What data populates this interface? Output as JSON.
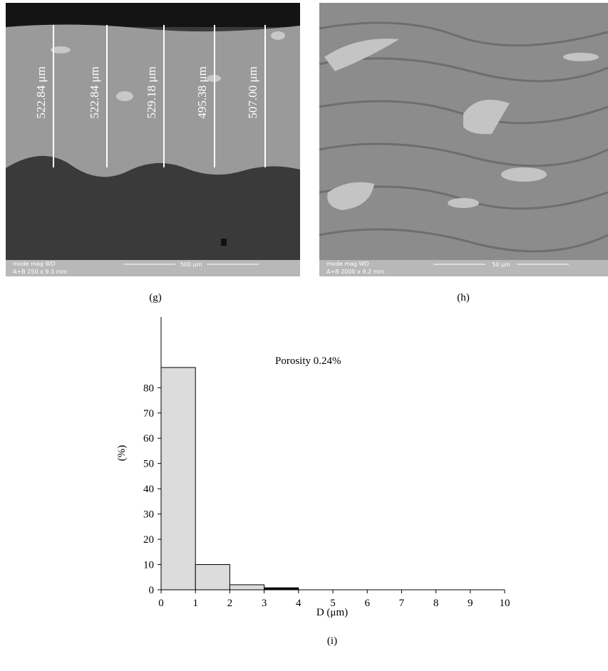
{
  "images": [
    {
      "caption": "(g)",
      "measurements": [
        "522.84 μm",
        "522.84 μm",
        "529.18 μm",
        "495.38 μm",
        "507.00 μm"
      ],
      "info_header": "mode  mag    WD",
      "info_values": "A+B  250 x 9.3 mm",
      "scale_bar": "500 μm"
    },
    {
      "caption": "(h)",
      "info_header": "mode  mag     WD",
      "info_values": "A+B  2000 x 9.2 mm",
      "scale_bar": "50 μm"
    }
  ],
  "chart_data": {
    "type": "histogram",
    "caption": "(i)",
    "annotation": "Porosity 0.24%",
    "xlabel": "D (μm)",
    "ylabel": "(%)",
    "bins": [
      0,
      1,
      2,
      3,
      4
    ],
    "values": [
      88,
      10,
      2,
      0.8
    ],
    "colors": [
      "#dcdcdc",
      "#dcdcdc",
      "#dcdcdc",
      "#000000"
    ],
    "xlim": [
      0,
      10
    ],
    "xticks": [
      0,
      1,
      2,
      3,
      4,
      5,
      6,
      7,
      8,
      9,
      10
    ],
    "ylim": [
      0,
      108
    ],
    "yticks": [
      0,
      10,
      20,
      30,
      40,
      50,
      60,
      70,
      80
    ]
  }
}
